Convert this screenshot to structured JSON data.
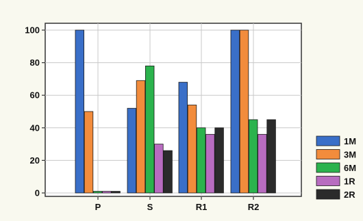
{
  "chart_data": {
    "type": "bar",
    "title": "",
    "xlabel": "",
    "ylabel": "",
    "ylim": [
      0,
      105
    ],
    "yticks": [
      0,
      20,
      40,
      60,
      80,
      100
    ],
    "grid": true,
    "legend_position": "right",
    "categories": [
      "P",
      "S",
      "R1",
      "R2"
    ],
    "series": [
      {
        "name": "1M",
        "color": "#3a6fc8",
        "values": [
          100,
          52,
          68,
          100
        ]
      },
      {
        "name": "3M",
        "color": "#f28c3c",
        "values": [
          50,
          69,
          54,
          100
        ]
      },
      {
        "name": "6M",
        "color": "#2bb34d",
        "values": [
          1,
          78,
          40,
          45
        ]
      },
      {
        "name": "1R",
        "color": "#b86cc0",
        "values": [
          1,
          30,
          36,
          36
        ]
      },
      {
        "name": "2R",
        "color": "#2b2b2b",
        "values": [
          1,
          26,
          40,
          45
        ]
      }
    ]
  }
}
